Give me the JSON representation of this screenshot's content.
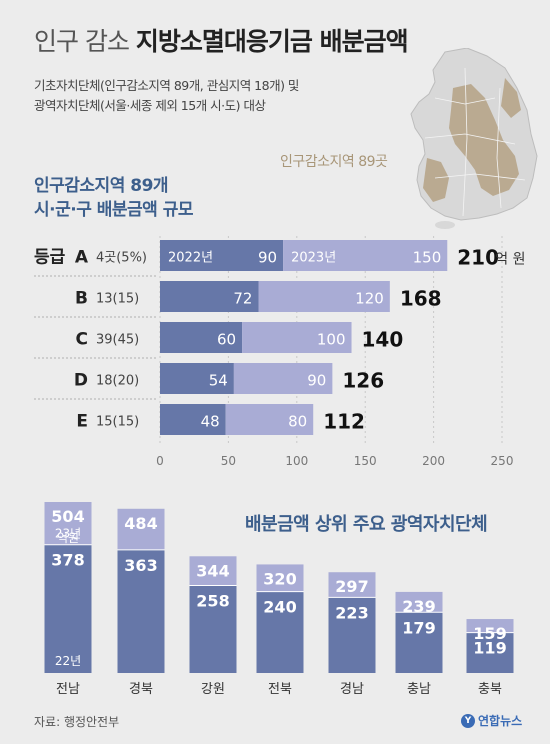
{
  "title": {
    "light": "인구 감소",
    "bold": "지방소멸대응기금 배분금액"
  },
  "subtitle_lines": [
    "기초자치단체(인구감소지역 89개, 관심지역 18개) 및",
    "광역자치단체(서울·세종 제외 15개 시·도) 대상"
  ],
  "map": {
    "label": "인구감소지역 89곳",
    "icon": "korea-map"
  },
  "colors": {
    "y2022": "#6677a8",
    "y2023": "#a9acd5",
    "accent": "#3d5f8c"
  },
  "hchart": {
    "title_lines": [
      "인구감소지역 89개",
      "시·군·구 배분금액 규모"
    ],
    "chart_data": {
      "type": "bar",
      "orientation": "horizontal",
      "stacked": true,
      "categories": [
        "A",
        "B",
        "C",
        "D",
        "E"
      ],
      "category_prefix": "등급",
      "counts": [
        "4곳(5%)",
        "13(15)",
        "39(45)",
        "18(20)",
        "15(15)"
      ],
      "series": [
        {
          "name": "2022년",
          "values": [
            90,
            72,
            60,
            54,
            48
          ]
        },
        {
          "name": "2023년",
          "values": [
            120,
            96,
            80,
            72,
            64
          ]
        }
      ],
      "totals": [
        210,
        168,
        140,
        126,
        112
      ],
      "total_unit": "억 원",
      "xlim": [
        0,
        250
      ],
      "xticks": [
        0,
        50,
        100,
        150,
        200,
        250
      ]
    }
  },
  "vchart": {
    "title": "배분금액 상위 주요 광역자치단체",
    "chart_data": {
      "type": "bar",
      "stacked": true,
      "categories": [
        "전남",
        "경북",
        "강원",
        "전북",
        "경남",
        "충남",
        "충북"
      ],
      "series": [
        {
          "name": "22년",
          "values": [
            378,
            363,
            258,
            240,
            223,
            179,
            119
          ]
        },
        {
          "name": "23년",
          "values": [
            126,
            121,
            86,
            80,
            74,
            60,
            40
          ]
        }
      ],
      "totals": [
        504,
        484,
        344,
        320,
        297,
        239,
        159
      ],
      "total_unit": "억원"
    }
  },
  "source": "자료: 행정안전부",
  "logo": {
    "mark": "Y",
    "name": "연합뉴스"
  }
}
